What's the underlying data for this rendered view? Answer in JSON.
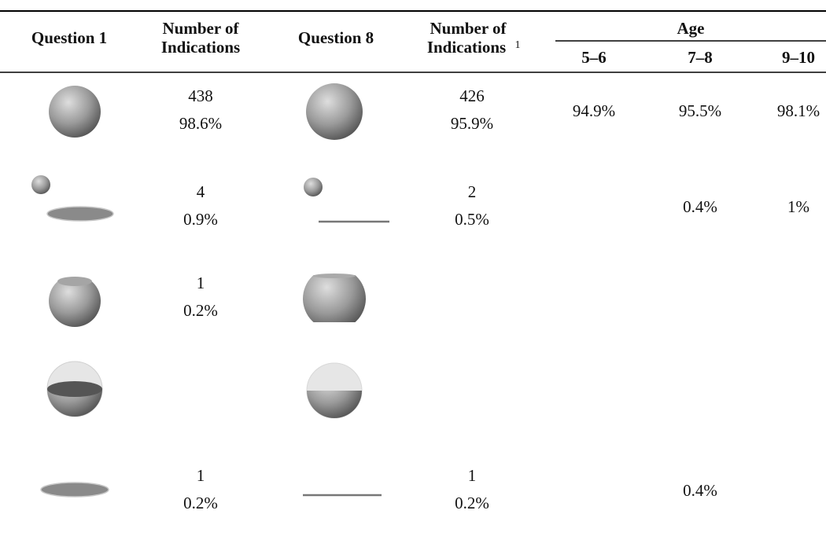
{
  "header": {
    "question1": "Question 1",
    "number_of_indications": [
      "Number of",
      "Indications"
    ],
    "question8": "Question 8",
    "number_of_indications_8": [
      "Number of",
      "Indications"
    ],
    "footnote": "1",
    "age": "Age",
    "age_groups": [
      "5–6",
      "7–8",
      "9–10"
    ]
  },
  "rows": [
    {
      "count1": "438",
      "pct1": "98.6%",
      "count8": "426",
      "pct8": "95.9%",
      "ages": [
        "94.9%",
        "95.5%",
        "98.1%"
      ]
    },
    {
      "count1": "4",
      "pct1": "0.9%",
      "count8": "2",
      "pct8": "0.5%",
      "ages": [
        null,
        "0.4%",
        "1%"
      ]
    },
    {
      "count1": "1",
      "pct1": "0.2%",
      "count8": null,
      "pct8": null,
      "ages": [
        null,
        null,
        null
      ]
    },
    {
      "count1": null,
      "pct1": null,
      "count8": null,
      "pct8": null,
      "ages": [
        null,
        null,
        null
      ]
    },
    {
      "count1": "1",
      "pct1": "0.2%",
      "count8": "1",
      "pct8": "0.2%",
      "ages": [
        null,
        "0.4%",
        null
      ]
    }
  ]
}
